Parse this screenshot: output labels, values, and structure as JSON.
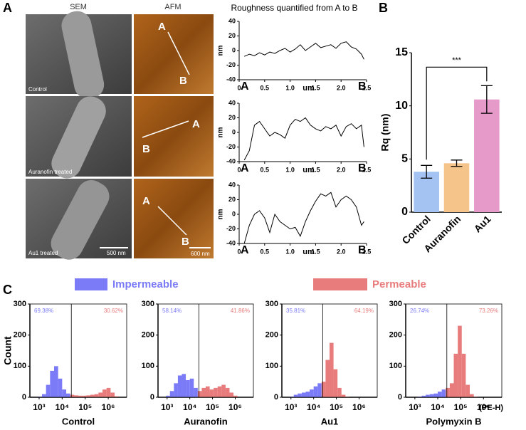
{
  "figure": {
    "panel_labels": [
      "A",
      "B",
      "C"
    ],
    "sem_header": "SEM",
    "afm_header": "AFM",
    "sem_labels": [
      "Control",
      "Auranofin treated",
      "Au1 treated"
    ],
    "sem_scale": "500 nm",
    "afm_scale": "600 nm",
    "afm_points": [
      [
        "A",
        "B"
      ],
      [
        "B",
        "A"
      ],
      [
        "A",
        "B"
      ]
    ],
    "legend": [
      {
        "name": "Impermeable",
        "color": "#7b7bf7"
      },
      {
        "name": "Permeable",
        "color": "#e87b7b"
      }
    ]
  },
  "chart_data": [
    {
      "type": "line",
      "title": "Roughness quantified from A to B",
      "xlabel": "um",
      "ylabel": "nm",
      "start_label": "A",
      "end_label": "B",
      "color": "#000000",
      "x": [
        0.1,
        0.2,
        0.3,
        0.4,
        0.5,
        0.6,
        0.7,
        0.8,
        0.9,
        1.0,
        1.1,
        1.2,
        1.3,
        1.4,
        1.5,
        1.6,
        1.7,
        1.8,
        1.9,
        2.0,
        2.1,
        2.2,
        2.3,
        2.4,
        2.45
      ],
      "values": [
        -8,
        -5,
        -7,
        -3,
        -6,
        -2,
        -4,
        0,
        3,
        -2,
        2,
        8,
        0,
        5,
        10,
        4,
        6,
        8,
        3,
        10,
        12,
        5,
        2,
        -5,
        -12
      ],
      "xlim": [
        0,
        2.5
      ],
      "xticks": [
        0,
        0.5,
        {
          "value": 1,
          "label": "1.0"
        },
        1.5,
        {
          "value": 2,
          "label": "2.0"
        },
        2.5
      ],
      "ylim": [
        -40,
        40
      ],
      "yticks": [
        -40,
        -20,
        0,
        20,
        40
      ]
    },
    {
      "type": "line",
      "xlabel": "um",
      "ylabel": "nm",
      "start_label": "A",
      "end_label": "B",
      "color": "#000000",
      "x": [
        0.1,
        0.2,
        0.3,
        0.4,
        0.5,
        0.6,
        0.7,
        0.8,
        0.9,
        1.0,
        1.1,
        1.2,
        1.3,
        1.4,
        1.5,
        1.6,
        1.7,
        1.8,
        1.9,
        2.0,
        2.1,
        2.2,
        2.3,
        2.4,
        2.45
      ],
      "values": [
        -38,
        -25,
        10,
        15,
        5,
        -5,
        0,
        -3,
        -8,
        10,
        18,
        15,
        20,
        10,
        5,
        2,
        8,
        5,
        10,
        -5,
        8,
        12,
        5,
        10,
        -20
      ],
      "xlim": [
        0,
        2.5
      ],
      "xticks": [
        0,
        0.5,
        {
          "value": 1,
          "label": "1.0"
        },
        1.5,
        {
          "value": 2,
          "label": "2.0"
        },
        2.5
      ],
      "ylim": [
        -40,
        40
      ],
      "yticks": [
        -40,
        -20,
        0,
        20,
        40
      ]
    },
    {
      "type": "line",
      "xlabel": "um",
      "ylabel": "nm",
      "start_label": "A",
      "end_label": "B",
      "color": "#000000",
      "x": [
        0.1,
        0.2,
        0.3,
        0.4,
        0.5,
        0.6,
        0.7,
        0.8,
        0.9,
        1.0,
        1.1,
        1.2,
        1.3,
        1.4,
        1.5,
        1.6,
        1.7,
        1.8,
        1.9,
        2.0,
        2.1,
        2.2,
        2.3,
        2.4,
        2.45
      ],
      "values": [
        -40,
        -15,
        0,
        5,
        -5,
        -25,
        0,
        -10,
        -15,
        -20,
        -18,
        -30,
        -10,
        5,
        18,
        28,
        25,
        30,
        10,
        20,
        25,
        20,
        10,
        -15,
        -10
      ],
      "xlim": [
        0,
        2.5
      ],
      "xticks": [
        0,
        0.5,
        {
          "value": 1,
          "label": "1.0"
        },
        1.5,
        {
          "value": 2,
          "label": "2.0"
        },
        2.5
      ],
      "ylim": [
        -40,
        40
      ],
      "yticks": [
        -40,
        -20,
        0,
        20,
        40
      ]
    },
    {
      "type": "bar",
      "ylabel": "Rq (nm)",
      "categories": [
        "Control",
        "Auranofin",
        "Au1"
      ],
      "values": [
        3.8,
        4.6,
        10.6
      ],
      "errors": [
        0.6,
        0.3,
        1.3
      ],
      "colors": [
        "#a4c3f2",
        "#f5c48a",
        "#e59ac9"
      ],
      "significance": "***",
      "ylim": [
        0,
        15
      ],
      "yticks": [
        0,
        5,
        10,
        15
      ]
    },
    {
      "type": "histogram",
      "log_x": true,
      "ylabel": "Count",
      "xlabel": "Control",
      "bins": [
        398,
        596,
        891,
        1334,
        1995,
        2985,
        4467,
        6683,
        10000,
        14962,
        22387,
        33497,
        50119,
        74989,
        112202,
        167880,
        251189,
        375837,
        562341,
        841395,
        1258925,
        1883649,
        2818383,
        4216965,
        6309573
      ],
      "counts": [
        0,
        0,
        2,
        10,
        40,
        85,
        100,
        60,
        25,
        12,
        8,
        6,
        5,
        5,
        6,
        8,
        10,
        15,
        25,
        30,
        15,
        3,
        0,
        0
      ],
      "gate": 25000,
      "gate_labels": [
        "69.38%",
        "30.62%"
      ],
      "colors": [
        "#7b7bf7",
        "#e87b7b"
      ],
      "xlim": [
        398,
        6309573
      ],
      "xticks": [
        {
          "value": 1000,
          "label": "10³"
        },
        {
          "value": 10000,
          "label": "10⁴"
        },
        {
          "value": 100000,
          "label": "10⁵"
        },
        {
          "value": 1000000,
          "label": "10⁶"
        }
      ],
      "ylim": [
        0,
        300
      ],
      "yticks": [
        0,
        100,
        200,
        300
      ]
    },
    {
      "type": "histogram",
      "log_x": true,
      "xlabel": "Auranofin",
      "bins": [
        398,
        596,
        891,
        1334,
        1995,
        2985,
        4467,
        6683,
        10000,
        14962,
        22387,
        33497,
        50119,
        74989,
        112202,
        167880,
        251189,
        375837,
        562341,
        841395,
        1258925,
        1883649,
        2818383,
        4216965,
        6309573
      ],
      "counts": [
        0,
        0,
        5,
        20,
        45,
        70,
        75,
        55,
        60,
        30,
        20,
        30,
        35,
        25,
        30,
        35,
        40,
        30,
        15,
        5,
        0,
        0,
        0,
        0
      ],
      "gate": 25000,
      "gate_labels": [
        "58.14%",
        "41.86%"
      ],
      "colors": [
        "#7b7bf7",
        "#e87b7b"
      ],
      "xlim": [
        398,
        6309573
      ],
      "xticks": [
        {
          "value": 1000,
          "label": "10³"
        },
        {
          "value": 10000,
          "label": "10⁴"
        },
        {
          "value": 100000,
          "label": "10⁵"
        },
        {
          "value": 1000000,
          "label": "10⁶"
        }
      ],
      "ylim": [
        0,
        300
      ],
      "yticks": [
        0,
        100,
        200,
        300
      ]
    },
    {
      "type": "histogram",
      "log_x": true,
      "xlabel": "Au1",
      "bins": [
        398,
        596,
        891,
        1334,
        1995,
        2985,
        4467,
        6683,
        10000,
        14962,
        22387,
        33497,
        50119,
        74989,
        112202,
        167880,
        251189,
        375837,
        562341,
        841395,
        1258925,
        1883649,
        2818383,
        4216965,
        6309573
      ],
      "counts": [
        0,
        0,
        2,
        8,
        12,
        15,
        18,
        25,
        35,
        45,
        50,
        120,
        175,
        90,
        30,
        8,
        2,
        0,
        0,
        0,
        0,
        0,
        0,
        0
      ],
      "gate": 25000,
      "gate_labels": [
        "35.81%",
        "64.19%"
      ],
      "colors": [
        "#7b7bf7",
        "#e87b7b"
      ],
      "xlim": [
        398,
        6309573
      ],
      "xticks": [
        {
          "value": 1000,
          "label": "10³"
        },
        {
          "value": 10000,
          "label": "10⁴"
        },
        {
          "value": 100000,
          "label": "10⁵"
        },
        {
          "value": 1000000,
          "label": "10⁶"
        }
      ],
      "ylim": [
        0,
        300
      ],
      "yticks": [
        0,
        100,
        200,
        300
      ]
    },
    {
      "type": "histogram",
      "log_x": true,
      "xlabel": "Polymyxin B",
      "unit_label": "(PE-H)",
      "bins": [
        398,
        596,
        891,
        1334,
        1995,
        2985,
        4467,
        6683,
        10000,
        14962,
        22387,
        33497,
        50119,
        74989,
        112202,
        167880,
        251189,
        375837,
        562341,
        841395,
        1258925,
        1883649,
        2818383,
        4216965,
        6309573
      ],
      "counts": [
        0,
        0,
        0,
        2,
        5,
        8,
        10,
        12,
        18,
        25,
        30,
        45,
        140,
        230,
        140,
        40,
        10,
        2,
        0,
        0,
        0,
        0,
        0,
        0
      ],
      "gate": 25000,
      "gate_labels": [
        "26.74%",
        "73.26%"
      ],
      "colors": [
        "#7b7bf7",
        "#e87b7b"
      ],
      "xlim": [
        398,
        6309573
      ],
      "xticks": [
        {
          "value": 1000,
          "label": "10³"
        },
        {
          "value": 10000,
          "label": "10⁴"
        },
        {
          "value": 100000,
          "label": "10⁵"
        },
        {
          "value": 1000000,
          "label": "10⁶"
        }
      ],
      "ylim": [
        0,
        300
      ],
      "yticks": [
        0,
        100,
        200,
        300
      ]
    }
  ]
}
